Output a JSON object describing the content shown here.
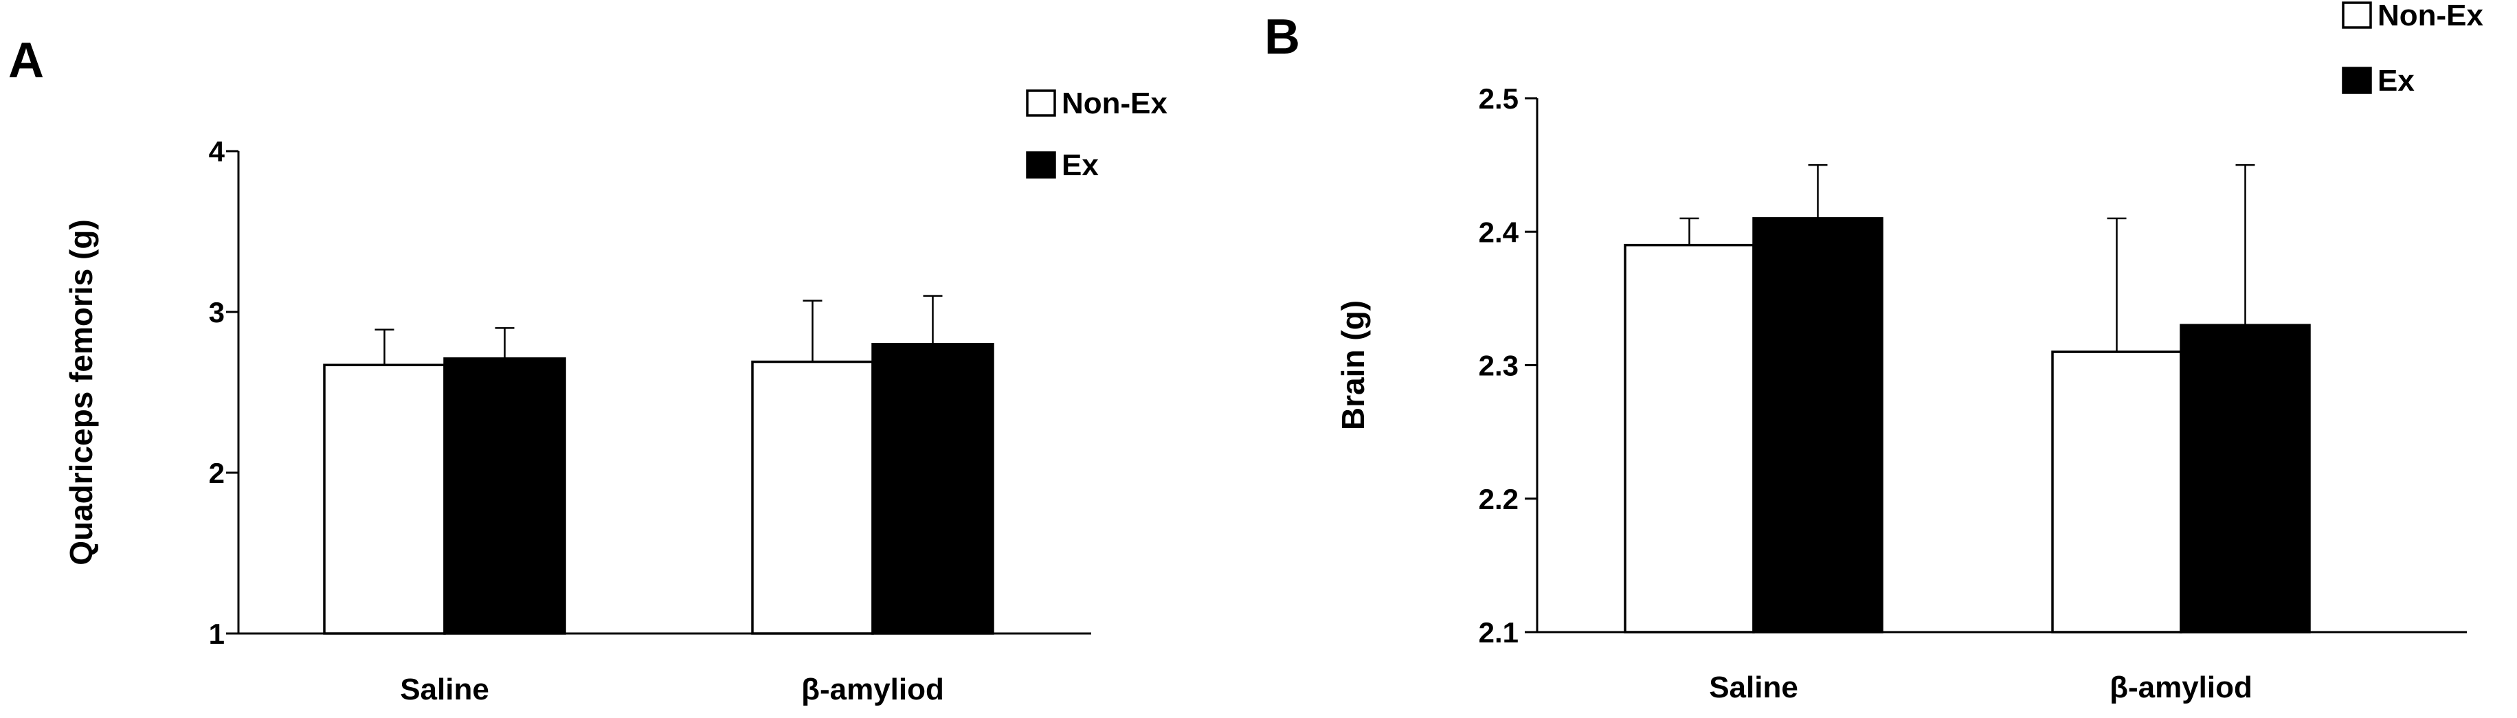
{
  "panels": [
    {
      "letter": "A"
    },
    {
      "letter": "B"
    }
  ],
  "chart_data": [
    {
      "type": "bar",
      "panel": "A",
      "title": "",
      "xlabel": "",
      "ylabel": "Quadriceps femoris (g)",
      "categories": [
        "Saline",
        "β-amyliod"
      ],
      "ylim": [
        1,
        4
      ],
      "yticks": [
        "1",
        "2",
        "3",
        "4"
      ],
      "series": [
        {
          "name": "Non-Ex",
          "values": [
            2.67,
            2.69
          ],
          "errors": [
            0.22,
            0.38
          ],
          "color": "#ffffff"
        },
        {
          "name": "Ex",
          "values": [
            2.71,
            2.8
          ],
          "errors": [
            0.19,
            0.3
          ],
          "color": "#000000"
        }
      ],
      "legend": "top-right",
      "grid": false
    },
    {
      "type": "bar",
      "panel": "B",
      "title": "",
      "xlabel": "",
      "ylabel": "Brain (g)",
      "categories": [
        "Saline",
        "β-amyliod"
      ],
      "ylim": [
        2.1,
        2.5
      ],
      "yticks": [
        "2.1",
        "2.2",
        "2.3",
        "2.4",
        "2.5"
      ],
      "series": [
        {
          "name": "Non-Ex",
          "values": [
            2.39,
            2.31
          ],
          "errors": [
            0.02,
            0.1
          ],
          "color": "#ffffff"
        },
        {
          "name": "Ex",
          "values": [
            2.41,
            2.33
          ],
          "errors": [
            0.04,
            0.12
          ],
          "color": "#000000"
        }
      ],
      "legend": "top-right",
      "grid": false
    }
  ]
}
